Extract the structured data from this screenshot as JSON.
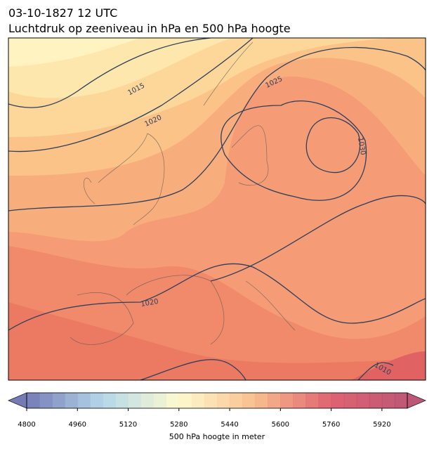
{
  "title": "03-10-1827 12 UTC",
  "subtitle": "Luchtdruk op zeeniveau in hPa en 500 hPa hoogte",
  "isobar_labels": [
    "1015",
    "1020",
    "1025",
    "1030",
    "1020",
    "1010"
  ],
  "colorbar": {
    "label": "500 hPa hoogte in meter",
    "lim": [
      4800,
      6000
    ],
    "level_step": 40,
    "ticks": [
      4800,
      4960,
      5120,
      5280,
      5440,
      5600,
      5760,
      5920
    ],
    "colormap": [
      "#5d64a9",
      "#a8d1e6",
      "#fdf9c6",
      "#f8b37b",
      "#d9485a",
      "#b23a5e"
    ]
  }
}
